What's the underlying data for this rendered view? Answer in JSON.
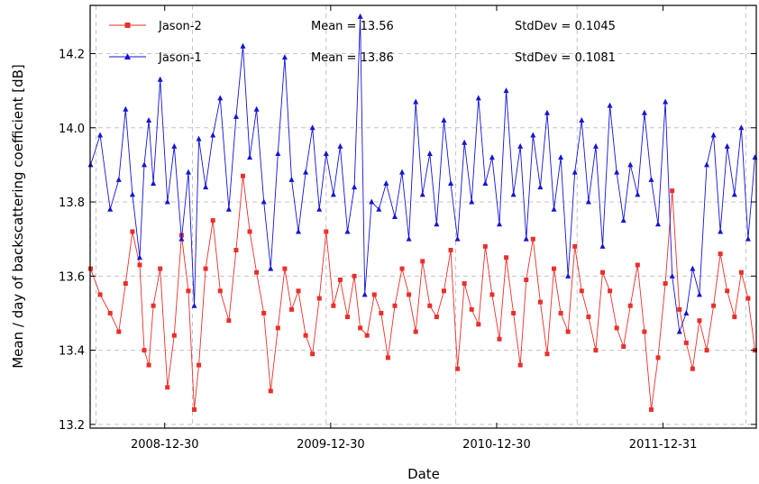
{
  "chart_data": {
    "type": "line",
    "xlabel": "Date",
    "ylabel": "Mean / day of backscattering coefficient [dB]",
    "xlim": [
      "2008-07-19",
      "2012-07-23"
    ],
    "ylim": [
      13.19,
      14.33
    ],
    "x_ticks": [
      {
        "date": "2008-12-30",
        "label": "2008-12-30"
      },
      {
        "date": "2009-12-30",
        "label": "2009-12-30"
      },
      {
        "date": "2010-12-30",
        "label": "2010-12-30"
      },
      {
        "date": "2011-12-31",
        "label": "2011-12-31"
      }
    ],
    "x_grid_dates": [
      "2008-08-01",
      "2009-03-01",
      "2009-12-20",
      "2010-10-01",
      "2011-06-25",
      "2012-06-30"
    ],
    "y_ticks": [
      13.2,
      13.4,
      13.6,
      13.8,
      14.0,
      14.2
    ],
    "grid": true,
    "legend_position": "top-left",
    "series": [
      {
        "name": "Jason-2",
        "color": "#e8302a",
        "marker": "square",
        "mean_label": "Mean = 13.56",
        "stddev_label": "StdDev = 0.1045",
        "points": [
          [
            "2008-07-20",
            13.62
          ],
          [
            "2008-08-10",
            13.55
          ],
          [
            "2008-09-01",
            13.5
          ],
          [
            "2008-09-20",
            13.45
          ],
          [
            "2008-10-05",
            13.58
          ],
          [
            "2008-10-20",
            13.72
          ],
          [
            "2008-11-05",
            13.63
          ],
          [
            "2008-11-15",
            13.4
          ],
          [
            "2008-11-25",
            13.36
          ],
          [
            "2008-12-05",
            13.52
          ],
          [
            "2008-12-20",
            13.62
          ],
          [
            "2009-01-05",
            13.3
          ],
          [
            "2009-01-20",
            13.44
          ],
          [
            "2009-02-05",
            13.71
          ],
          [
            "2009-02-20",
            13.56
          ],
          [
            "2009-03-05",
            13.24
          ],
          [
            "2009-03-15",
            13.36
          ],
          [
            "2009-03-30",
            13.62
          ],
          [
            "2009-04-15",
            13.75
          ],
          [
            "2009-05-01",
            13.56
          ],
          [
            "2009-05-20",
            13.48
          ],
          [
            "2009-06-05",
            13.67
          ],
          [
            "2009-06-20",
            13.87
          ],
          [
            "2009-07-05",
            13.72
          ],
          [
            "2009-07-20",
            13.61
          ],
          [
            "2009-08-05",
            13.5
          ],
          [
            "2009-08-20",
            13.29
          ],
          [
            "2009-09-05",
            13.46
          ],
          [
            "2009-09-20",
            13.62
          ],
          [
            "2009-10-05",
            13.51
          ],
          [
            "2009-10-20",
            13.56
          ],
          [
            "2009-11-05",
            13.44
          ],
          [
            "2009-11-20",
            13.39
          ],
          [
            "2009-12-05",
            13.54
          ],
          [
            "2009-12-20",
            13.72
          ],
          [
            "2010-01-05",
            13.52
          ],
          [
            "2010-01-20",
            13.59
          ],
          [
            "2010-02-05",
            13.49
          ],
          [
            "2010-02-20",
            13.6
          ],
          [
            "2010-03-05",
            13.46
          ],
          [
            "2010-03-20",
            13.44
          ],
          [
            "2010-04-05",
            13.55
          ],
          [
            "2010-04-20",
            13.5
          ],
          [
            "2010-05-05",
            13.38
          ],
          [
            "2010-05-20",
            13.52
          ],
          [
            "2010-06-05",
            13.62
          ],
          [
            "2010-06-20",
            13.55
          ],
          [
            "2010-07-05",
            13.45
          ],
          [
            "2010-07-20",
            13.64
          ],
          [
            "2010-08-05",
            13.52
          ],
          [
            "2010-08-20",
            13.49
          ],
          [
            "2010-09-05",
            13.56
          ],
          [
            "2010-09-20",
            13.67
          ],
          [
            "2010-10-05",
            13.35
          ],
          [
            "2010-10-20",
            13.58
          ],
          [
            "2010-11-05",
            13.51
          ],
          [
            "2010-11-20",
            13.47
          ],
          [
            "2010-12-05",
            13.68
          ],
          [
            "2010-12-20",
            13.55
          ],
          [
            "2011-01-05",
            13.43
          ],
          [
            "2011-01-20",
            13.65
          ],
          [
            "2011-02-05",
            13.5
          ],
          [
            "2011-02-20",
            13.36
          ],
          [
            "2011-03-05",
            13.59
          ],
          [
            "2011-03-20",
            13.7
          ],
          [
            "2011-04-05",
            13.53
          ],
          [
            "2011-04-20",
            13.39
          ],
          [
            "2011-05-05",
            13.62
          ],
          [
            "2011-05-20",
            13.5
          ],
          [
            "2011-06-05",
            13.45
          ],
          [
            "2011-06-20",
            13.68
          ],
          [
            "2011-07-05",
            13.56
          ],
          [
            "2011-07-20",
            13.49
          ],
          [
            "2011-08-05",
            13.4
          ],
          [
            "2011-08-20",
            13.61
          ],
          [
            "2011-09-05",
            13.56
          ],
          [
            "2011-09-20",
            13.46
          ],
          [
            "2011-10-05",
            13.41
          ],
          [
            "2011-10-20",
            13.52
          ],
          [
            "2011-11-05",
            13.63
          ],
          [
            "2011-11-20",
            13.45
          ],
          [
            "2011-12-05",
            13.24
          ],
          [
            "2011-12-20",
            13.38
          ],
          [
            "2012-01-05",
            13.58
          ],
          [
            "2012-01-20",
            13.83
          ],
          [
            "2012-02-05",
            13.51
          ],
          [
            "2012-02-20",
            13.42
          ],
          [
            "2012-03-05",
            13.35
          ],
          [
            "2012-03-20",
            13.48
          ],
          [
            "2012-04-05",
            13.4
          ],
          [
            "2012-04-20",
            13.52
          ],
          [
            "2012-05-05",
            13.66
          ],
          [
            "2012-05-20",
            13.56
          ],
          [
            "2012-06-05",
            13.49
          ],
          [
            "2012-06-20",
            13.61
          ],
          [
            "2012-07-05",
            13.54
          ],
          [
            "2012-07-20",
            13.4
          ]
        ]
      },
      {
        "name": "Jason-1",
        "color": "#1414d4",
        "marker": "triangle",
        "mean_label": "Mean = 13.86",
        "stddev_label": "StdDev = 0.1081",
        "points": [
          [
            "2008-07-20",
            13.9
          ],
          [
            "2008-08-10",
            13.98
          ],
          [
            "2008-09-01",
            13.78
          ],
          [
            "2008-09-20",
            13.86
          ],
          [
            "2008-10-05",
            14.05
          ],
          [
            "2008-10-20",
            13.82
          ],
          [
            "2008-11-05",
            13.65
          ],
          [
            "2008-11-15",
            13.9
          ],
          [
            "2008-11-25",
            14.02
          ],
          [
            "2008-12-05",
            13.85
          ],
          [
            "2008-12-20",
            14.13
          ],
          [
            "2009-01-05",
            13.8
          ],
          [
            "2009-01-20",
            13.95
          ],
          [
            "2009-02-05",
            13.7
          ],
          [
            "2009-02-20",
            13.88
          ],
          [
            "2009-03-05",
            13.52
          ],
          [
            "2009-03-15",
            13.97
          ],
          [
            "2009-03-30",
            13.84
          ],
          [
            "2009-04-15",
            13.98
          ],
          [
            "2009-05-01",
            14.08
          ],
          [
            "2009-05-20",
            13.78
          ],
          [
            "2009-06-05",
            14.03
          ],
          [
            "2009-06-20",
            14.22
          ],
          [
            "2009-07-05",
            13.92
          ],
          [
            "2009-07-20",
            14.05
          ],
          [
            "2009-08-05",
            13.8
          ],
          [
            "2009-08-20",
            13.62
          ],
          [
            "2009-09-05",
            13.93
          ],
          [
            "2009-09-20",
            14.19
          ],
          [
            "2009-10-05",
            13.86
          ],
          [
            "2009-10-20",
            13.72
          ],
          [
            "2009-11-05",
            13.88
          ],
          [
            "2009-11-20",
            14.0
          ],
          [
            "2009-12-05",
            13.78
          ],
          [
            "2009-12-20",
            13.93
          ],
          [
            "2010-01-05",
            13.82
          ],
          [
            "2010-01-20",
            13.95
          ],
          [
            "2010-02-05",
            13.72
          ],
          [
            "2010-02-20",
            13.84
          ],
          [
            "2010-03-05",
            14.3
          ],
          [
            "2010-03-15",
            13.55
          ],
          [
            "2010-03-30",
            13.8
          ],
          [
            "2010-04-15",
            13.78
          ],
          [
            "2010-05-01",
            13.85
          ],
          [
            "2010-05-20",
            13.76
          ],
          [
            "2010-06-05",
            13.88
          ],
          [
            "2010-06-20",
            13.7
          ],
          [
            "2010-07-05",
            14.07
          ],
          [
            "2010-07-20",
            13.82
          ],
          [
            "2010-08-05",
            13.93
          ],
          [
            "2010-08-20",
            13.74
          ],
          [
            "2010-09-05",
            14.02
          ],
          [
            "2010-09-20",
            13.85
          ],
          [
            "2010-10-05",
            13.7
          ],
          [
            "2010-10-20",
            13.96
          ],
          [
            "2010-11-05",
            13.8
          ],
          [
            "2010-11-20",
            14.08
          ],
          [
            "2010-12-05",
            13.85
          ],
          [
            "2010-12-20",
            13.92
          ],
          [
            "2011-01-05",
            13.74
          ],
          [
            "2011-01-20",
            14.1
          ],
          [
            "2011-02-05",
            13.82
          ],
          [
            "2011-02-20",
            13.95
          ],
          [
            "2011-03-05",
            13.7
          ],
          [
            "2011-03-20",
            13.98
          ],
          [
            "2011-04-05",
            13.84
          ],
          [
            "2011-04-20",
            14.04
          ],
          [
            "2011-05-05",
            13.78
          ],
          [
            "2011-05-20",
            13.92
          ],
          [
            "2011-06-05",
            13.6
          ],
          [
            "2011-06-20",
            13.88
          ],
          [
            "2011-07-05",
            14.02
          ],
          [
            "2011-07-20",
            13.8
          ],
          [
            "2011-08-05",
            13.95
          ],
          [
            "2011-08-20",
            13.68
          ],
          [
            "2011-09-05",
            14.06
          ],
          [
            "2011-09-20",
            13.88
          ],
          [
            "2011-10-05",
            13.75
          ],
          [
            "2011-10-20",
            13.9
          ],
          [
            "2011-11-05",
            13.82
          ],
          [
            "2011-11-20",
            14.04
          ],
          [
            "2011-12-05",
            13.86
          ],
          [
            "2011-12-20",
            13.74
          ],
          [
            "2012-01-05",
            14.07
          ],
          [
            "2012-01-20",
            13.6
          ],
          [
            "2012-02-05",
            13.45
          ],
          [
            "2012-02-20",
            13.5
          ],
          [
            "2012-03-05",
            13.62
          ],
          [
            "2012-03-20",
            13.55
          ],
          [
            "2012-04-05",
            13.9
          ],
          [
            "2012-04-20",
            13.98
          ],
          [
            "2012-05-05",
            13.72
          ],
          [
            "2012-05-20",
            13.95
          ],
          [
            "2012-06-05",
            13.82
          ],
          [
            "2012-06-20",
            14.0
          ],
          [
            "2012-07-05",
            13.7
          ],
          [
            "2012-07-20",
            13.92
          ]
        ]
      }
    ]
  }
}
